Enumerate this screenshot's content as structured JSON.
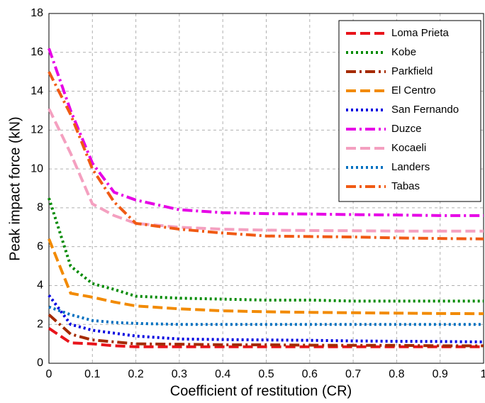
{
  "chart_data": {
    "type": "line",
    "xlabel": "Coefficient of restitution (CR)",
    "ylabel": "Peak impact force (kN)",
    "x": [
      0,
      0.05,
      0.1,
      0.15,
      0.2,
      0.3,
      0.4,
      0.5,
      0.6,
      0.7,
      0.8,
      0.9,
      1
    ],
    "series": [
      {
        "name": "Loma Prieta",
        "color": "#e8141b",
        "dash": "dashed",
        "values": [
          1.8,
          1.05,
          1.0,
          0.9,
          0.85,
          0.85,
          0.85,
          0.85,
          0.85,
          0.85,
          0.85,
          0.85,
          0.85
        ]
      },
      {
        "name": "Kobe",
        "color": "#008a00",
        "dash": "dotted",
        "values": [
          8.5,
          5.0,
          4.1,
          3.8,
          3.45,
          3.35,
          3.3,
          3.25,
          3.25,
          3.2,
          3.2,
          3.2,
          3.2
        ]
      },
      {
        "name": "Parkfield",
        "color": "#a52a00",
        "dash": "dashdot",
        "values": [
          2.5,
          1.5,
          1.2,
          1.1,
          1.0,
          0.98,
          0.95,
          0.95,
          0.93,
          0.92,
          0.92,
          0.9,
          0.9
        ]
      },
      {
        "name": "El Centro",
        "color": "#f28a00",
        "dash": "dashed",
        "values": [
          6.4,
          3.6,
          3.4,
          3.15,
          2.95,
          2.8,
          2.7,
          2.65,
          2.62,
          2.6,
          2.58,
          2.56,
          2.55
        ]
      },
      {
        "name": "San Fernando",
        "color": "#0000e0",
        "dash": "dotted",
        "values": [
          3.5,
          2.0,
          1.7,
          1.55,
          1.4,
          1.25,
          1.22,
          1.2,
          1.18,
          1.15,
          1.13,
          1.12,
          1.1
        ]
      },
      {
        "name": "Duzce",
        "color": "#e600e6",
        "dash": "dashdot",
        "values": [
          16.2,
          13.0,
          10.3,
          8.8,
          8.4,
          7.9,
          7.75,
          7.7,
          7.68,
          7.65,
          7.63,
          7.6,
          7.6
        ]
      },
      {
        "name": "Kocaeli",
        "color": "#f4a0c0",
        "dash": "dashed",
        "values": [
          13.1,
          10.8,
          8.2,
          7.6,
          7.2,
          7.0,
          6.9,
          6.85,
          6.83,
          6.82,
          6.8,
          6.8,
          6.8
        ]
      },
      {
        "name": "Landers",
        "color": "#0070c0",
        "dash": "dotted",
        "values": [
          2.9,
          2.5,
          2.2,
          2.1,
          2.05,
          2.0,
          2.0,
          2.0,
          2.0,
          2.0,
          2.0,
          2.0,
          2.0
        ]
      },
      {
        "name": "Tabas",
        "color": "#f05a14",
        "dash": "dashdot",
        "values": [
          15.0,
          12.8,
          10.0,
          8.3,
          7.2,
          6.9,
          6.7,
          6.55,
          6.52,
          6.5,
          6.45,
          6.42,
          6.4
        ]
      }
    ],
    "xlim": [
      0,
      1
    ],
    "xticks": [
      0,
      0.1,
      0.2,
      0.3,
      0.4,
      0.5,
      0.6,
      0.7,
      0.8,
      0.9,
      1
    ],
    "ylim": [
      0,
      18
    ],
    "yticks": [
      0,
      2,
      4,
      6,
      8,
      10,
      12,
      14,
      16,
      18
    ],
    "grid": true,
    "legend": "top-right"
  }
}
